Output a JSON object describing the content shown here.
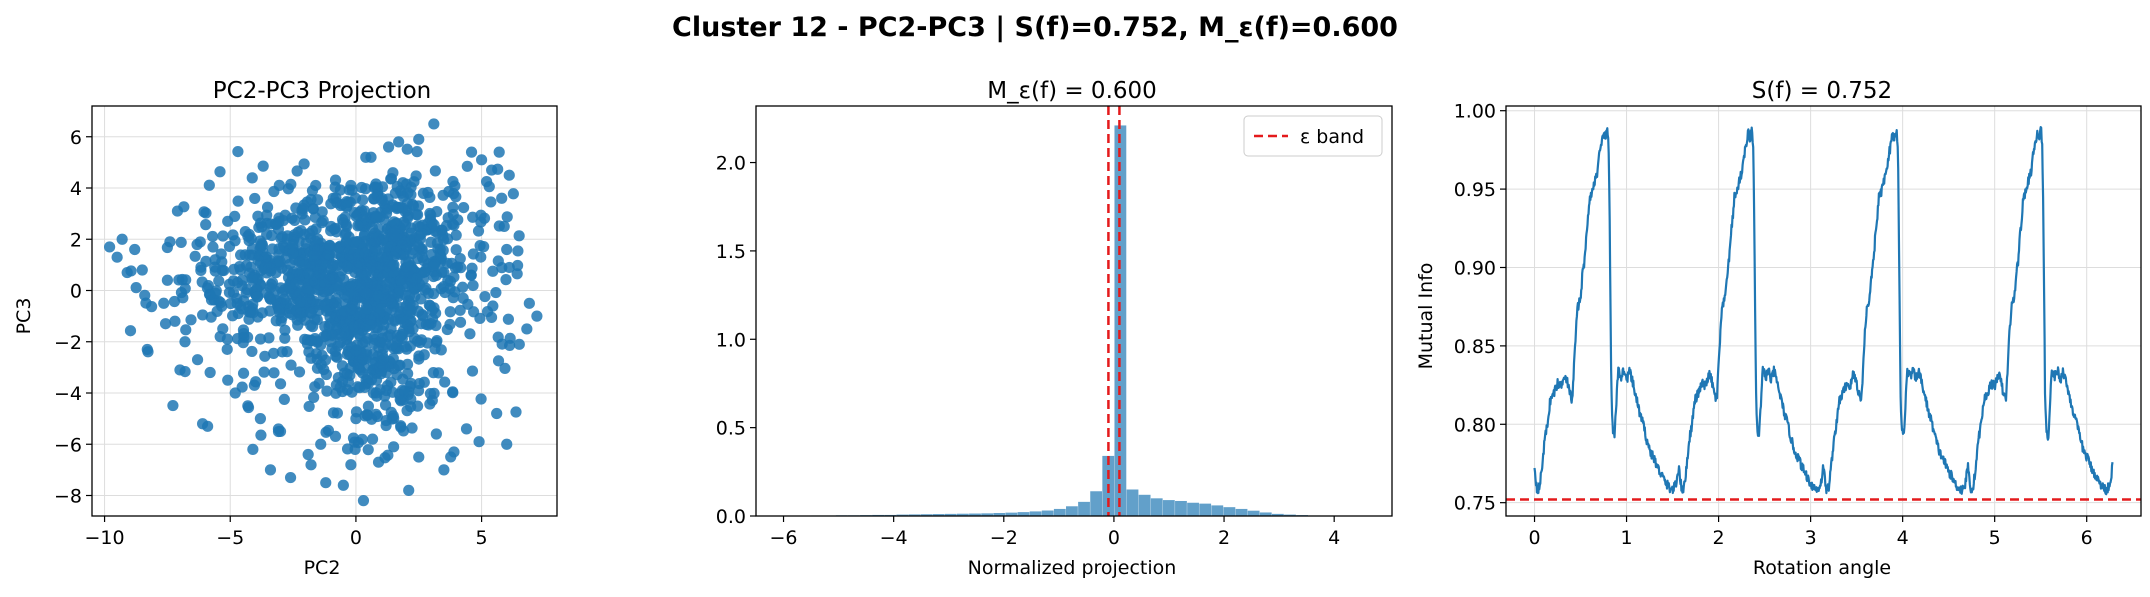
{
  "suptitle": "Cluster 12 - PC2-PC3 | S(f)=0.752, M_ε(f)=0.600",
  "colors": {
    "series": "#1f77b4",
    "reference": "#e41a1c",
    "grid": "#dddddd"
  },
  "chart_data": [
    {
      "type": "scatter",
      "title": "PC2-PC3 Projection",
      "xlabel": "PC2",
      "ylabel": "PC3",
      "xlim": [
        -10.5,
        8.0
      ],
      "ylim": [
        -8.8,
        7.2
      ],
      "xticks": [
        -10,
        -5,
        0,
        5
      ],
      "yticks": [
        -8,
        -6,
        -4,
        -2,
        0,
        2,
        4,
        6
      ],
      "xtick_labels": [
        "−10",
        "−5",
        "0",
        "5"
      ],
      "ytick_labels": [
        "−8",
        "−6",
        "−4",
        "−2",
        "0",
        "2",
        "4",
        "6"
      ],
      "grid": true,
      "point_count_approx": 1600,
      "points": [
        [
          -9.8,
          1.7
        ],
        [
          -9.5,
          1.3
        ],
        [
          -9.3,
          2.0
        ],
        [
          -8.8,
          1.6
        ],
        [
          -9.1,
          0.7
        ],
        [
          -8.5,
          0.8
        ],
        [
          -8.3,
          -2.3
        ],
        [
          -7.4,
          1.9
        ],
        [
          -7.1,
          3.1
        ],
        [
          -7.5,
          0.4
        ],
        [
          -7.2,
          -1.2
        ],
        [
          -7.0,
          -3.1
        ],
        [
          -6.8,
          -2.0
        ],
        [
          -6.3,
          -2.7
        ],
        [
          -6.1,
          -5.2
        ],
        [
          -5.9,
          -5.3
        ],
        [
          -5.8,
          -3.2
        ],
        [
          -5.6,
          1.2
        ],
        [
          -5.4,
          -1.8
        ],
        [
          -5.1,
          -3.5
        ],
        [
          -4.8,
          -4.0
        ],
        [
          -4.3,
          -4.5
        ],
        [
          -4.1,
          -6.2
        ],
        [
          -3.8,
          -5.0
        ],
        [
          -3.4,
          -7.0
        ],
        [
          -3.0,
          -5.5
        ],
        [
          -2.6,
          -7.3
        ],
        [
          -1.9,
          -6.4
        ],
        [
          -1.4,
          -6.0
        ],
        [
          -1.2,
          -7.5
        ],
        [
          -0.5,
          -7.6
        ],
        [
          -0.2,
          -6.8
        ],
        [
          0.0,
          -5.0
        ],
        [
          0.3,
          -8.2
        ],
        [
          0.9,
          -6.7
        ],
        [
          1.5,
          -6.1
        ],
        [
          2.1,
          -7.8
        ],
        [
          2.5,
          -6.5
        ],
        [
          3.2,
          -5.6
        ],
        [
          3.5,
          -7.0
        ],
        [
          3.9,
          -6.3
        ],
        [
          4.4,
          -5.4
        ],
        [
          4.9,
          -5.9
        ],
        [
          5.6,
          -4.8
        ],
        [
          6.0,
          -6.0
        ],
        [
          6.5,
          -2.1
        ],
        [
          6.8,
          -1.5
        ],
        [
          7.2,
          -1.0
        ],
        [
          6.9,
          -0.5
        ],
        [
          6.1,
          0.9
        ],
        [
          6.0,
          1.6
        ],
        [
          5.9,
          2.5
        ],
        [
          5.8,
          3.6
        ],
        [
          6.1,
          4.5
        ],
        [
          5.7,
          5.4
        ],
        [
          5.4,
          4.7
        ],
        [
          5.0,
          5.1
        ],
        [
          4.6,
          5.4
        ],
        [
          3.1,
          6.5
        ],
        [
          2.5,
          5.9
        ],
        [
          1.7,
          5.8
        ],
        [
          1.3,
          5.6
        ],
        [
          0.6,
          5.2
        ],
        [
          -0.2,
          4.1
        ],
        [
          -0.9,
          3.6
        ],
        [
          -1.6,
          4.1
        ],
        [
          -2.1,
          3.2
        ],
        [
          -3.2,
          2.6
        ],
        [
          -3.9,
          2.9
        ],
        [
          -4.4,
          2.3
        ],
        [
          -5.1,
          2.7
        ]
      ],
      "cluster_blobs": [
        {
          "cx": -2.0,
          "cy": 0.5,
          "sx": 2.4,
          "sy": 1.1,
          "n": 420
        },
        {
          "cx": 1.6,
          "cy": 1.6,
          "sx": 1.4,
          "sy": 1.6,
          "n": 320
        },
        {
          "cx": 0.6,
          "cy": -2.6,
          "sx": 1.1,
          "sy": 1.5,
          "n": 220
        },
        {
          "cx": 0.0,
          "cy": 0.0,
          "sx": 3.4,
          "sy": 2.6,
          "n": 480
        }
      ]
    },
    {
      "type": "bar",
      "title": "M_ε(f) = 0.600",
      "xlabel": "Normalized projection",
      "ylabel": "",
      "xlim": [
        -6.5,
        5.05
      ],
      "ylim": [
        0,
        2.32
      ],
      "xticks": [
        -6,
        -4,
        -2,
        0,
        2,
        4
      ],
      "yticks": [
        0.0,
        0.5,
        1.0,
        1.5,
        2.0
      ],
      "xtick_labels": [
        "−6",
        "−4",
        "−2",
        "0",
        "2",
        "4"
      ],
      "ytick_labels": [
        "0.0",
        "0.5",
        "1.0",
        "1.5",
        "2.0"
      ],
      "grid": false,
      "bin_width": 0.22,
      "bins": [
        [
          -6.15,
          0.002
        ],
        [
          -5.93,
          0.002
        ],
        [
          -5.71,
          0.002
        ],
        [
          -5.49,
          0.003
        ],
        [
          -5.27,
          0.003
        ],
        [
          -5.05,
          0.004
        ],
        [
          -4.83,
          0.004
        ],
        [
          -4.61,
          0.005
        ],
        [
          -4.39,
          0.006
        ],
        [
          -4.17,
          0.006
        ],
        [
          -3.95,
          0.008
        ],
        [
          -3.73,
          0.009
        ],
        [
          -3.51,
          0.01
        ],
        [
          -3.29,
          0.011
        ],
        [
          -3.07,
          0.012
        ],
        [
          -2.85,
          0.013
        ],
        [
          -2.63,
          0.014
        ],
        [
          -2.41,
          0.015
        ],
        [
          -2.19,
          0.017
        ],
        [
          -1.97,
          0.019
        ],
        [
          -1.75,
          0.022
        ],
        [
          -1.53,
          0.026
        ],
        [
          -1.31,
          0.031
        ],
        [
          -1.09,
          0.04
        ],
        [
          -0.87,
          0.055
        ],
        [
          -0.65,
          0.08
        ],
        [
          -0.43,
          0.14
        ],
        [
          -0.21,
          0.34
        ],
        [
          0.01,
          2.21
        ],
        [
          0.23,
          0.15
        ],
        [
          0.45,
          0.12
        ],
        [
          0.67,
          0.1
        ],
        [
          0.89,
          0.09
        ],
        [
          1.11,
          0.085
        ],
        [
          1.33,
          0.075
        ],
        [
          1.55,
          0.07
        ],
        [
          1.77,
          0.06
        ],
        [
          1.99,
          0.05
        ],
        [
          2.21,
          0.04
        ],
        [
          2.43,
          0.03
        ],
        [
          2.65,
          0.02
        ],
        [
          2.87,
          0.012
        ],
        [
          3.09,
          0.008
        ],
        [
          3.31,
          0.005
        ],
        [
          3.53,
          0.003
        ],
        [
          3.75,
          0.002
        ],
        [
          3.97,
          0.002
        ],
        [
          4.19,
          0.001
        ],
        [
          4.41,
          0.001
        ]
      ],
      "reference_lines": [
        -0.1,
        0.1
      ],
      "legend": {
        "label": "ε band",
        "position": "top-right"
      }
    },
    {
      "type": "line",
      "title": "S(f) = 0.752",
      "xlabel": "Rotation angle",
      "ylabel": "Mutual Info",
      "xlim": [
        -0.31,
        6.59
      ],
      "ylim": [
        0.7415,
        1.003
      ],
      "xticks": [
        0,
        1,
        2,
        3,
        4,
        5,
        6
      ],
      "yticks": [
        0.75,
        0.8,
        0.85,
        0.9,
        0.95,
        1.0
      ],
      "xtick_labels": [
        "0",
        "1",
        "2",
        "3",
        "4",
        "5",
        "6"
      ],
      "ytick_labels": [
        "0.75",
        "0.80",
        "0.85",
        "0.90",
        "0.95",
        "1.00"
      ],
      "grid": true,
      "reference_line": 0.752,
      "period": 1.5708,
      "x_range": [
        0.0,
        6.28
      ],
      "template": [
        [
          0.0,
          0.774
        ],
        [
          0.01,
          0.766
        ],
        [
          0.03,
          0.758
        ],
        [
          0.055,
          0.76
        ],
        [
          0.08,
          0.772
        ],
        [
          0.11,
          0.79
        ],
        [
          0.14,
          0.8
        ],
        [
          0.17,
          0.815
        ],
        [
          0.21,
          0.82
        ],
        [
          0.25,
          0.826
        ],
        [
          0.29,
          0.824
        ],
        [
          0.32,
          0.832
        ],
        [
          0.35,
          0.829
        ],
        [
          0.38,
          0.82
        ],
        [
          0.41,
          0.815
        ],
        [
          0.43,
          0.838
        ],
        [
          0.45,
          0.86
        ],
        [
          0.47,
          0.875
        ],
        [
          0.5,
          0.88
        ],
        [
          0.52,
          0.895
        ],
        [
          0.545,
          0.905
        ],
        [
          0.56,
          0.92
        ],
        [
          0.58,
          0.93
        ],
        [
          0.6,
          0.945
        ],
        [
          0.63,
          0.948
        ],
        [
          0.65,
          0.955
        ],
        [
          0.68,
          0.96
        ],
        [
          0.7,
          0.97
        ],
        [
          0.73,
          0.978
        ],
        [
          0.75,
          0.986
        ],
        [
          0.77,
          0.982
        ],
        [
          0.79,
          0.988
        ],
        [
          0.805,
          0.979
        ],
        [
          0.815,
          0.94
        ],
        [
          0.825,
          0.88
        ],
        [
          0.835,
          0.82
        ],
        [
          0.85,
          0.795
        ],
        [
          0.87,
          0.792
        ],
        [
          0.89,
          0.815
        ],
        [
          0.91,
          0.835
        ],
        [
          0.94,
          0.83
        ],
        [
          0.97,
          0.835
        ],
        [
          1.0,
          0.828
        ],
        [
          1.03,
          0.834
        ],
        [
          1.06,
          0.828
        ],
        [
          1.1,
          0.818
        ],
        [
          1.14,
          0.808
        ],
        [
          1.18,
          0.8
        ],
        [
          1.22,
          0.79
        ],
        [
          1.26,
          0.782
        ],
        [
          1.3,
          0.778
        ],
        [
          1.34,
          0.772
        ],
        [
          1.38,
          0.768
        ],
        [
          1.42,
          0.763
        ],
        [
          1.46,
          0.76
        ],
        [
          1.5,
          0.758
        ],
        [
          1.54,
          0.762
        ],
        [
          1.57,
          0.774
        ]
      ]
    }
  ]
}
